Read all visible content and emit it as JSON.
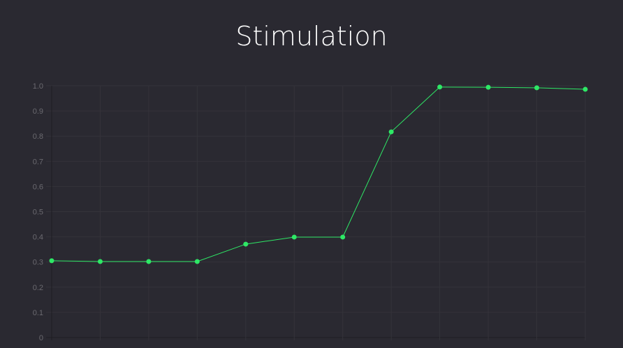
{
  "chart_data": {
    "type": "line",
    "title": "Stimulation",
    "xlabel": "",
    "ylabel": "",
    "ylim": [
      0,
      1.0
    ],
    "yticks": [
      "0",
      "0.1",
      "0.2",
      "0.3",
      "0.4",
      "0.5",
      "0.6",
      "0.7",
      "0.8",
      "0.9",
      "1.0"
    ],
    "grid": true,
    "series": [
      {
        "values": [
          0.305,
          0.302,
          0.302,
          0.302,
          0.371,
          0.399,
          0.399,
          0.817,
          0.995,
          0.994,
          0.992,
          0.986
        ]
      }
    ],
    "colors": {
      "line": "#2ee866",
      "background": "#2a2931",
      "grid": "#34333a"
    }
  }
}
